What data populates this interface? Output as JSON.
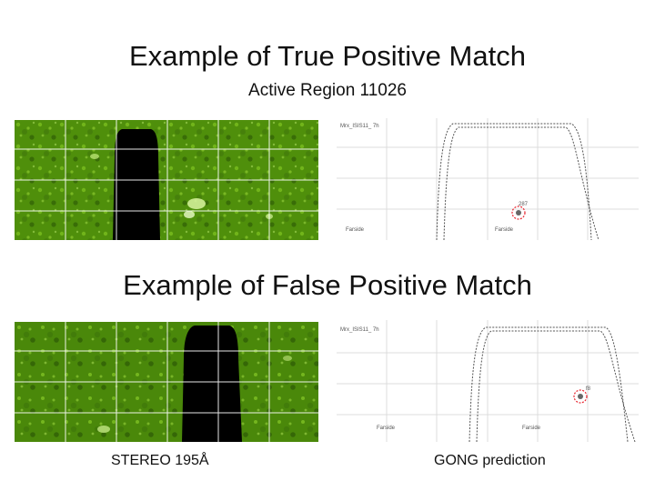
{
  "slide": {
    "title_true": "Example of True Positive Match",
    "subtitle_true": "Active Region 11026",
    "title_false": "Example of False Positive Match",
    "caption_left": "STEREO 195Å",
    "caption_right": "GONG prediction"
  },
  "true_match": {
    "gong_header": "Mrx_ISIS11_ 7h",
    "region_label": "287",
    "farside_label": "Farside",
    "bottom_right_label": "Farside"
  },
  "false_match": {
    "gong_header": "Mrx_ISIS11_ 7h",
    "region_label": "f8",
    "farside_label": "Farside",
    "bottom_right_label": "Farside"
  },
  "colors": {
    "stereo_green": "#4f8f0b",
    "stereo_dark": "#2f5e06",
    "mask": "#000000",
    "grid_light": "#dcdcdc",
    "match_circle": "#e8212b"
  }
}
